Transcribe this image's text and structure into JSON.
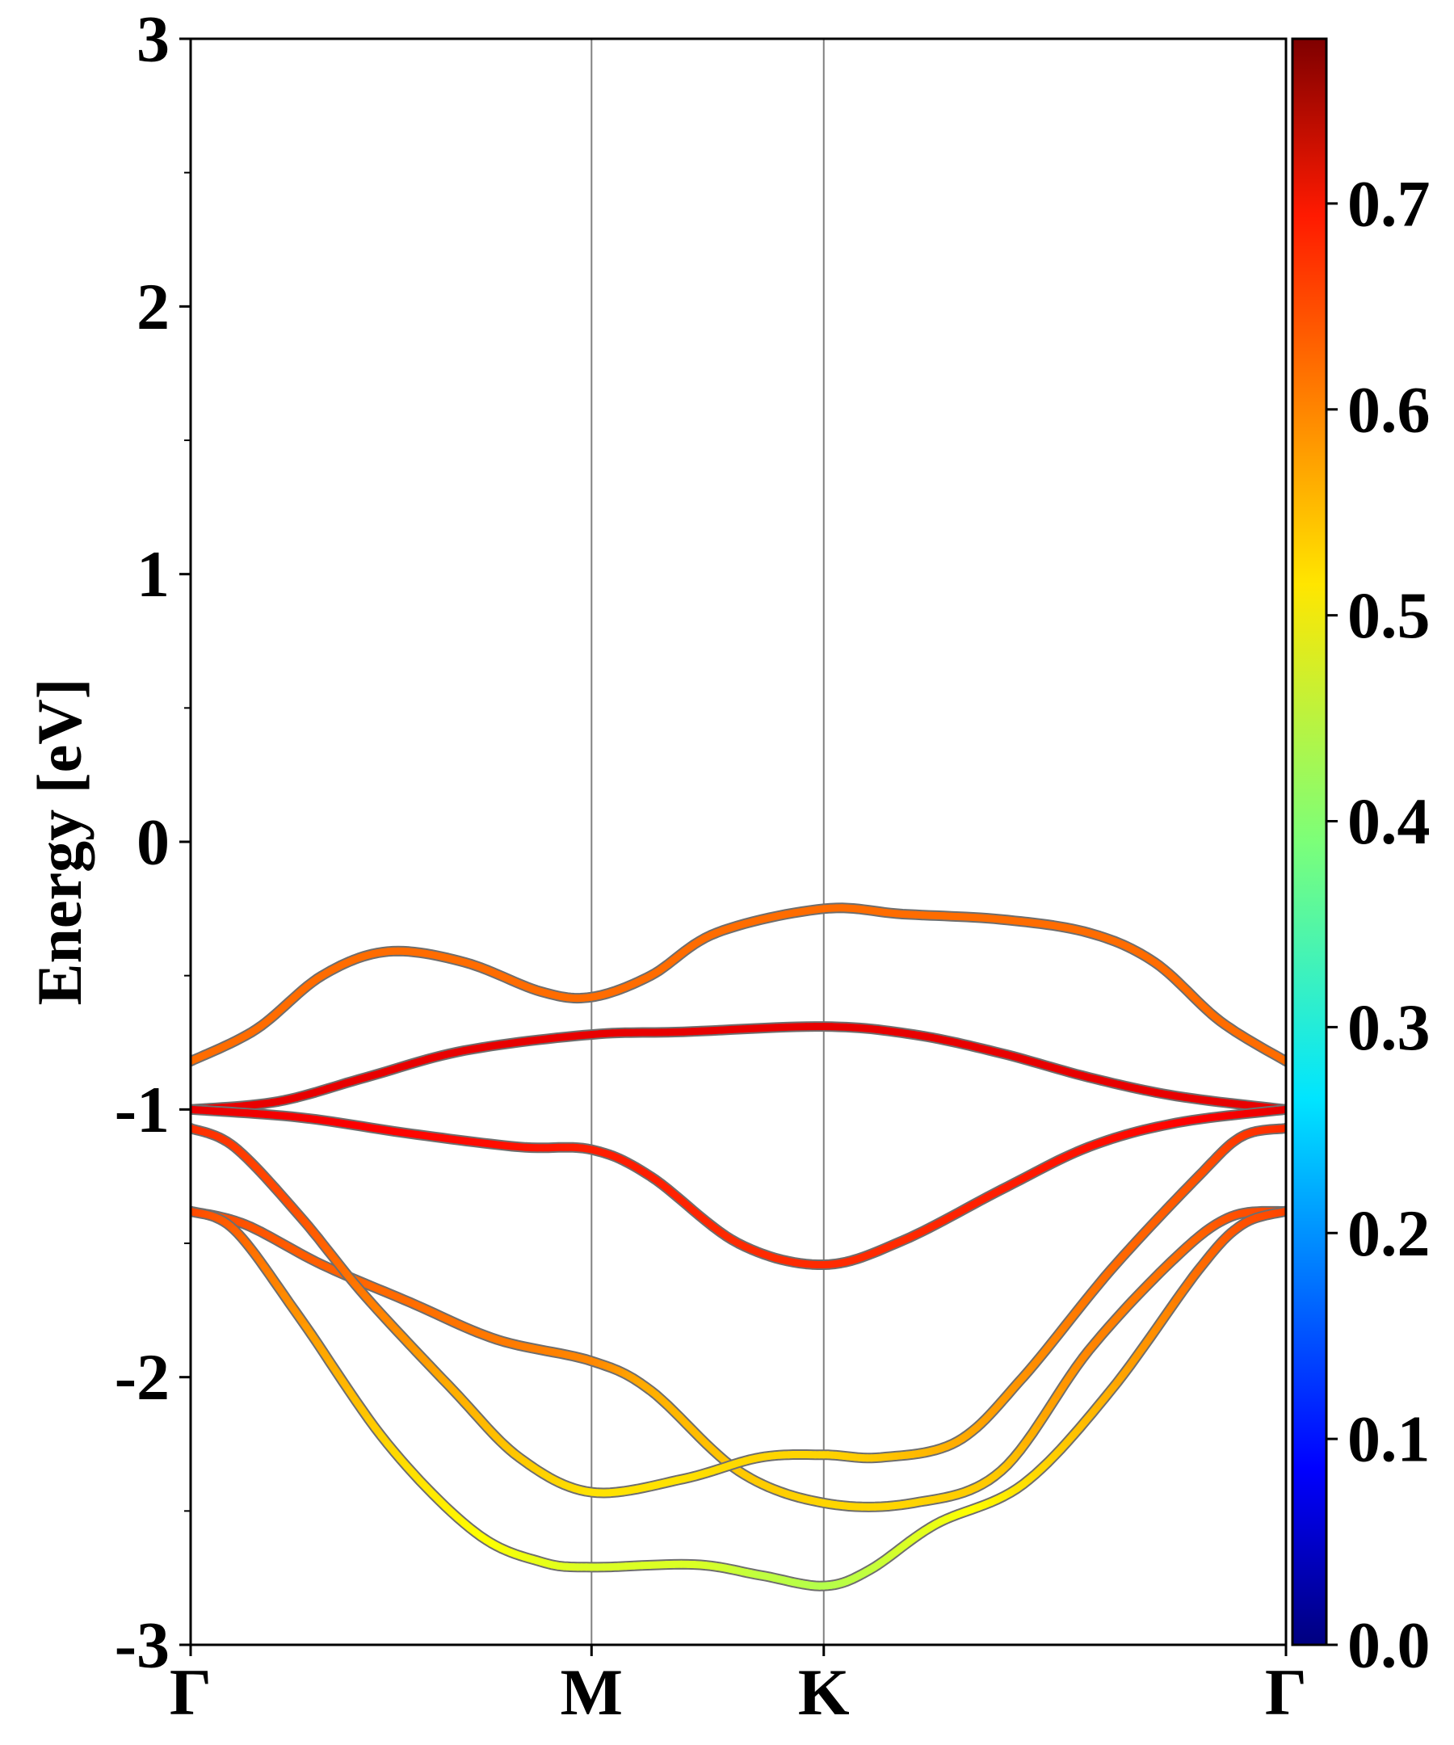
{
  "chart_data": {
    "type": "line",
    "title": "",
    "xlabel": "",
    "ylabel": "Energy [eV]",
    "ylim": [
      -3,
      3
    ],
    "yticks": [
      3,
      2,
      1,
      0,
      -1,
      -2,
      -3
    ],
    "yticks_labels": [
      "3",
      "2",
      "1",
      "0",
      "-1",
      "-2",
      "-3"
    ],
    "xlim": [
      0,
      1
    ],
    "xticks": [
      {
        "label": "Γ",
        "x": 0.0
      },
      {
        "label": "M",
        "x": 0.366
      },
      {
        "label": "K",
        "x": 0.578
      },
      {
        "label": "Γ",
        "x": 1.0
      }
    ],
    "colorbar": {
      "colormap": "jet",
      "range": [
        0.0,
        0.78
      ],
      "ticks": [
        0.0,
        0.1,
        0.2,
        0.3,
        0.4,
        0.5,
        0.6,
        0.7
      ],
      "tick_labels": [
        "0.0",
        "0.1",
        "0.2",
        "0.3",
        "0.4",
        "0.5",
        "0.6",
        "0.7"
      ]
    },
    "series": [
      {
        "x": [
          0,
          0.06,
          0.12,
          0.18,
          0.25,
          0.32,
          0.366,
          0.42,
          0.48,
          0.578,
          0.65,
          0.74,
          0.82,
          0.88,
          0.94,
          1.0
        ],
        "y": [
          -0.82,
          -0.7,
          -0.5,
          -0.41,
          -0.45,
          -0.56,
          -0.58,
          -0.5,
          -0.34,
          -0.25,
          -0.27,
          -0.29,
          -0.34,
          -0.45,
          -0.67,
          -0.82
        ],
        "c": [
          0.6,
          0.6,
          0.6,
          0.6,
          0.6,
          0.6,
          0.6,
          0.6,
          0.6,
          0.6,
          0.6,
          0.6,
          0.6,
          0.6,
          0.6,
          0.6
        ]
      },
      {
        "x": [
          0,
          0.08,
          0.16,
          0.25,
          0.366,
          0.45,
          0.578,
          0.66,
          0.74,
          0.82,
          0.9,
          1.0
        ],
        "y": [
          -1.0,
          -0.97,
          -0.88,
          -0.78,
          -0.72,
          -0.71,
          -0.69,
          -0.72,
          -0.79,
          -0.88,
          -0.95,
          -1.0
        ],
        "c": [
          0.7,
          0.7,
          0.7,
          0.7,
          0.7,
          0.7,
          0.7,
          0.7,
          0.7,
          0.7,
          0.7,
          0.7
        ]
      },
      {
        "x": [
          0,
          0.1,
          0.2,
          0.3,
          0.366,
          0.42,
          0.5,
          0.578,
          0.65,
          0.74,
          0.82,
          0.9,
          1.0
        ],
        "y": [
          -1.0,
          -1.03,
          -1.09,
          -1.14,
          -1.15,
          -1.25,
          -1.5,
          -1.58,
          -1.49,
          -1.3,
          -1.14,
          -1.05,
          -1.0
        ],
        "c": [
          0.7,
          0.69,
          0.68,
          0.67,
          0.66,
          0.66,
          0.65,
          0.65,
          0.65,
          0.66,
          0.67,
          0.68,
          0.7
        ]
      },
      {
        "x": [
          0,
          0.05,
          0.12,
          0.2,
          0.28,
          0.366,
          0.42,
          0.5,
          0.578,
          0.66,
          0.74,
          0.82,
          0.9,
          0.95,
          1.0
        ],
        "y": [
          -1.38,
          -1.43,
          -1.58,
          -1.72,
          -1.86,
          -1.94,
          -2.05,
          -2.35,
          -2.47,
          -2.47,
          -2.35,
          -1.9,
          -1.55,
          -1.4,
          -1.38
        ],
        "c": [
          0.63,
          0.62,
          0.61,
          0.6,
          0.59,
          0.58,
          0.55,
          0.53,
          0.52,
          0.52,
          0.53,
          0.58,
          0.6,
          0.62,
          0.63
        ]
      },
      {
        "x": [
          0,
          0.04,
          0.1,
          0.16,
          0.24,
          0.3,
          0.366,
          0.45,
          0.52,
          0.578,
          0.63,
          0.7,
          0.76,
          0.84,
          0.92,
          0.96,
          1.0
        ],
        "y": [
          -1.07,
          -1.14,
          -1.4,
          -1.7,
          -2.05,
          -2.3,
          -2.43,
          -2.38,
          -2.3,
          -2.29,
          -2.3,
          -2.24,
          -2.0,
          -1.6,
          -1.25,
          -1.1,
          -1.07
        ],
        "c": [
          0.65,
          0.64,
          0.62,
          0.59,
          0.55,
          0.53,
          0.51,
          0.51,
          0.52,
          0.52,
          0.53,
          0.55,
          0.57,
          0.6,
          0.62,
          0.64,
          0.65
        ]
      },
      {
        "x": [
          0,
          0.04,
          0.1,
          0.18,
          0.26,
          0.32,
          0.366,
          0.46,
          0.52,
          0.578,
          0.62,
          0.68,
          0.76,
          0.84,
          0.92,
          0.96,
          1.0
        ],
        "y": [
          -1.38,
          -1.45,
          -1.78,
          -2.25,
          -2.58,
          -2.69,
          -2.71,
          -2.7,
          -2.74,
          -2.78,
          -2.72,
          -2.55,
          -2.4,
          -2.05,
          -1.6,
          -1.43,
          -1.38
        ],
        "c": [
          0.63,
          0.61,
          0.57,
          0.52,
          0.49,
          0.47,
          0.46,
          0.46,
          0.44,
          0.43,
          0.44,
          0.47,
          0.51,
          0.55,
          0.6,
          0.62,
          0.63
        ]
      }
    ]
  }
}
